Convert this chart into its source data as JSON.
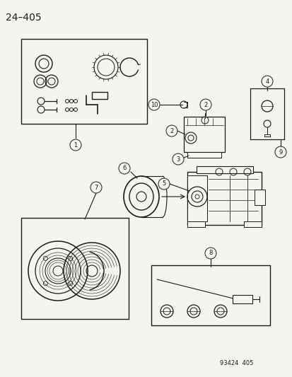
{
  "title": "24–405",
  "bg_color": "#f5f5f0",
  "line_color": "#1a1a1a",
  "fig_width": 4.14,
  "fig_height": 5.33,
  "dpi": 100,
  "footer_text": "93424  405"
}
